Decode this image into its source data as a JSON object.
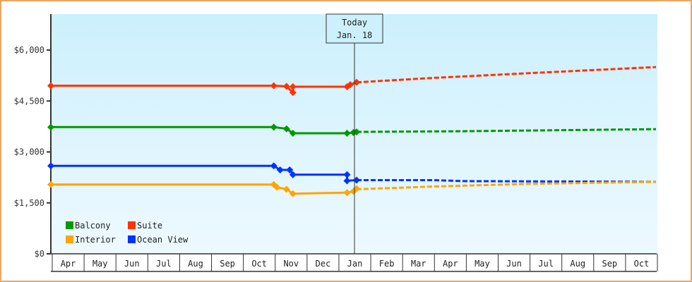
{
  "chart_data": {
    "type": "line",
    "title": "",
    "xlabel": "",
    "ylabel": "",
    "ylim": [
      0,
      7000
    ],
    "yticks": [
      "$0",
      "$1,500",
      "$3,000",
      "$4,500",
      "$6,000"
    ],
    "ytick_values": [
      0,
      1500,
      3000,
      4500,
      6000
    ],
    "months": [
      "Apr",
      "May",
      "Jun",
      "Jul",
      "Aug",
      "Sep",
      "Oct",
      "Nov",
      "Dec",
      "Jan",
      "Feb",
      "Mar",
      "Apr",
      "May",
      "Jun",
      "Jul",
      "Aug",
      "Sep",
      "Oct"
    ],
    "today": {
      "line1": "Today",
      "line2": "Jan. 18"
    },
    "legend": [
      {
        "name": "Balcony",
        "color": "#009900"
      },
      {
        "name": "Suite",
        "color": "#ff3300"
      },
      {
        "name": "Interior",
        "color": "#ffa500"
      },
      {
        "name": "Ocean View",
        "color": "#0033ff"
      }
    ],
    "series": [
      {
        "name": "Suite",
        "color": "#ff3300",
        "history": [
          [
            0,
            4950
          ],
          [
            7.0,
            4950
          ],
          [
            7.4,
            4930
          ],
          [
            7.6,
            4750
          ],
          [
            7.6,
            4920
          ],
          [
            9.3,
            4920
          ],
          [
            9.4,
            4980
          ],
          [
            9.6,
            5050
          ]
        ],
        "forecast": [
          [
            9.6,
            5050
          ],
          [
            12,
            5180
          ],
          [
            15,
            5320
          ],
          [
            19,
            5500
          ]
        ]
      },
      {
        "name": "Balcony",
        "color": "#009900",
        "history": [
          [
            0,
            3730
          ],
          [
            7.0,
            3730
          ],
          [
            7.4,
            3680
          ],
          [
            7.6,
            3550
          ],
          [
            9.3,
            3550
          ],
          [
            9.5,
            3570
          ],
          [
            9.6,
            3590
          ]
        ],
        "forecast": [
          [
            9.6,
            3590
          ],
          [
            13,
            3610
          ],
          [
            19,
            3670
          ]
        ]
      },
      {
        "name": "Ocean View",
        "color": "#0033ff",
        "history": [
          [
            0,
            2590
          ],
          [
            7.0,
            2590
          ],
          [
            7.2,
            2470
          ],
          [
            7.5,
            2470
          ],
          [
            7.6,
            2330
          ],
          [
            9.3,
            2330
          ],
          [
            9.3,
            2150
          ],
          [
            9.6,
            2170
          ]
        ],
        "forecast": [
          [
            9.6,
            2170
          ],
          [
            12,
            2170
          ],
          [
            13,
            2140
          ],
          [
            19,
            2120
          ]
        ]
      },
      {
        "name": "Interior",
        "color": "#ffa500",
        "history": [
          [
            0,
            2040
          ],
          [
            7.0,
            2040
          ],
          [
            7.1,
            1960
          ],
          [
            7.4,
            1900
          ],
          [
            7.6,
            1770
          ],
          [
            9.3,
            1800
          ],
          [
            9.5,
            1840
          ],
          [
            9.6,
            1920
          ]
        ],
        "forecast": [
          [
            9.6,
            1900
          ],
          [
            12,
            1980
          ],
          [
            15,
            2060
          ],
          [
            19,
            2120
          ]
        ]
      }
    ]
  }
}
